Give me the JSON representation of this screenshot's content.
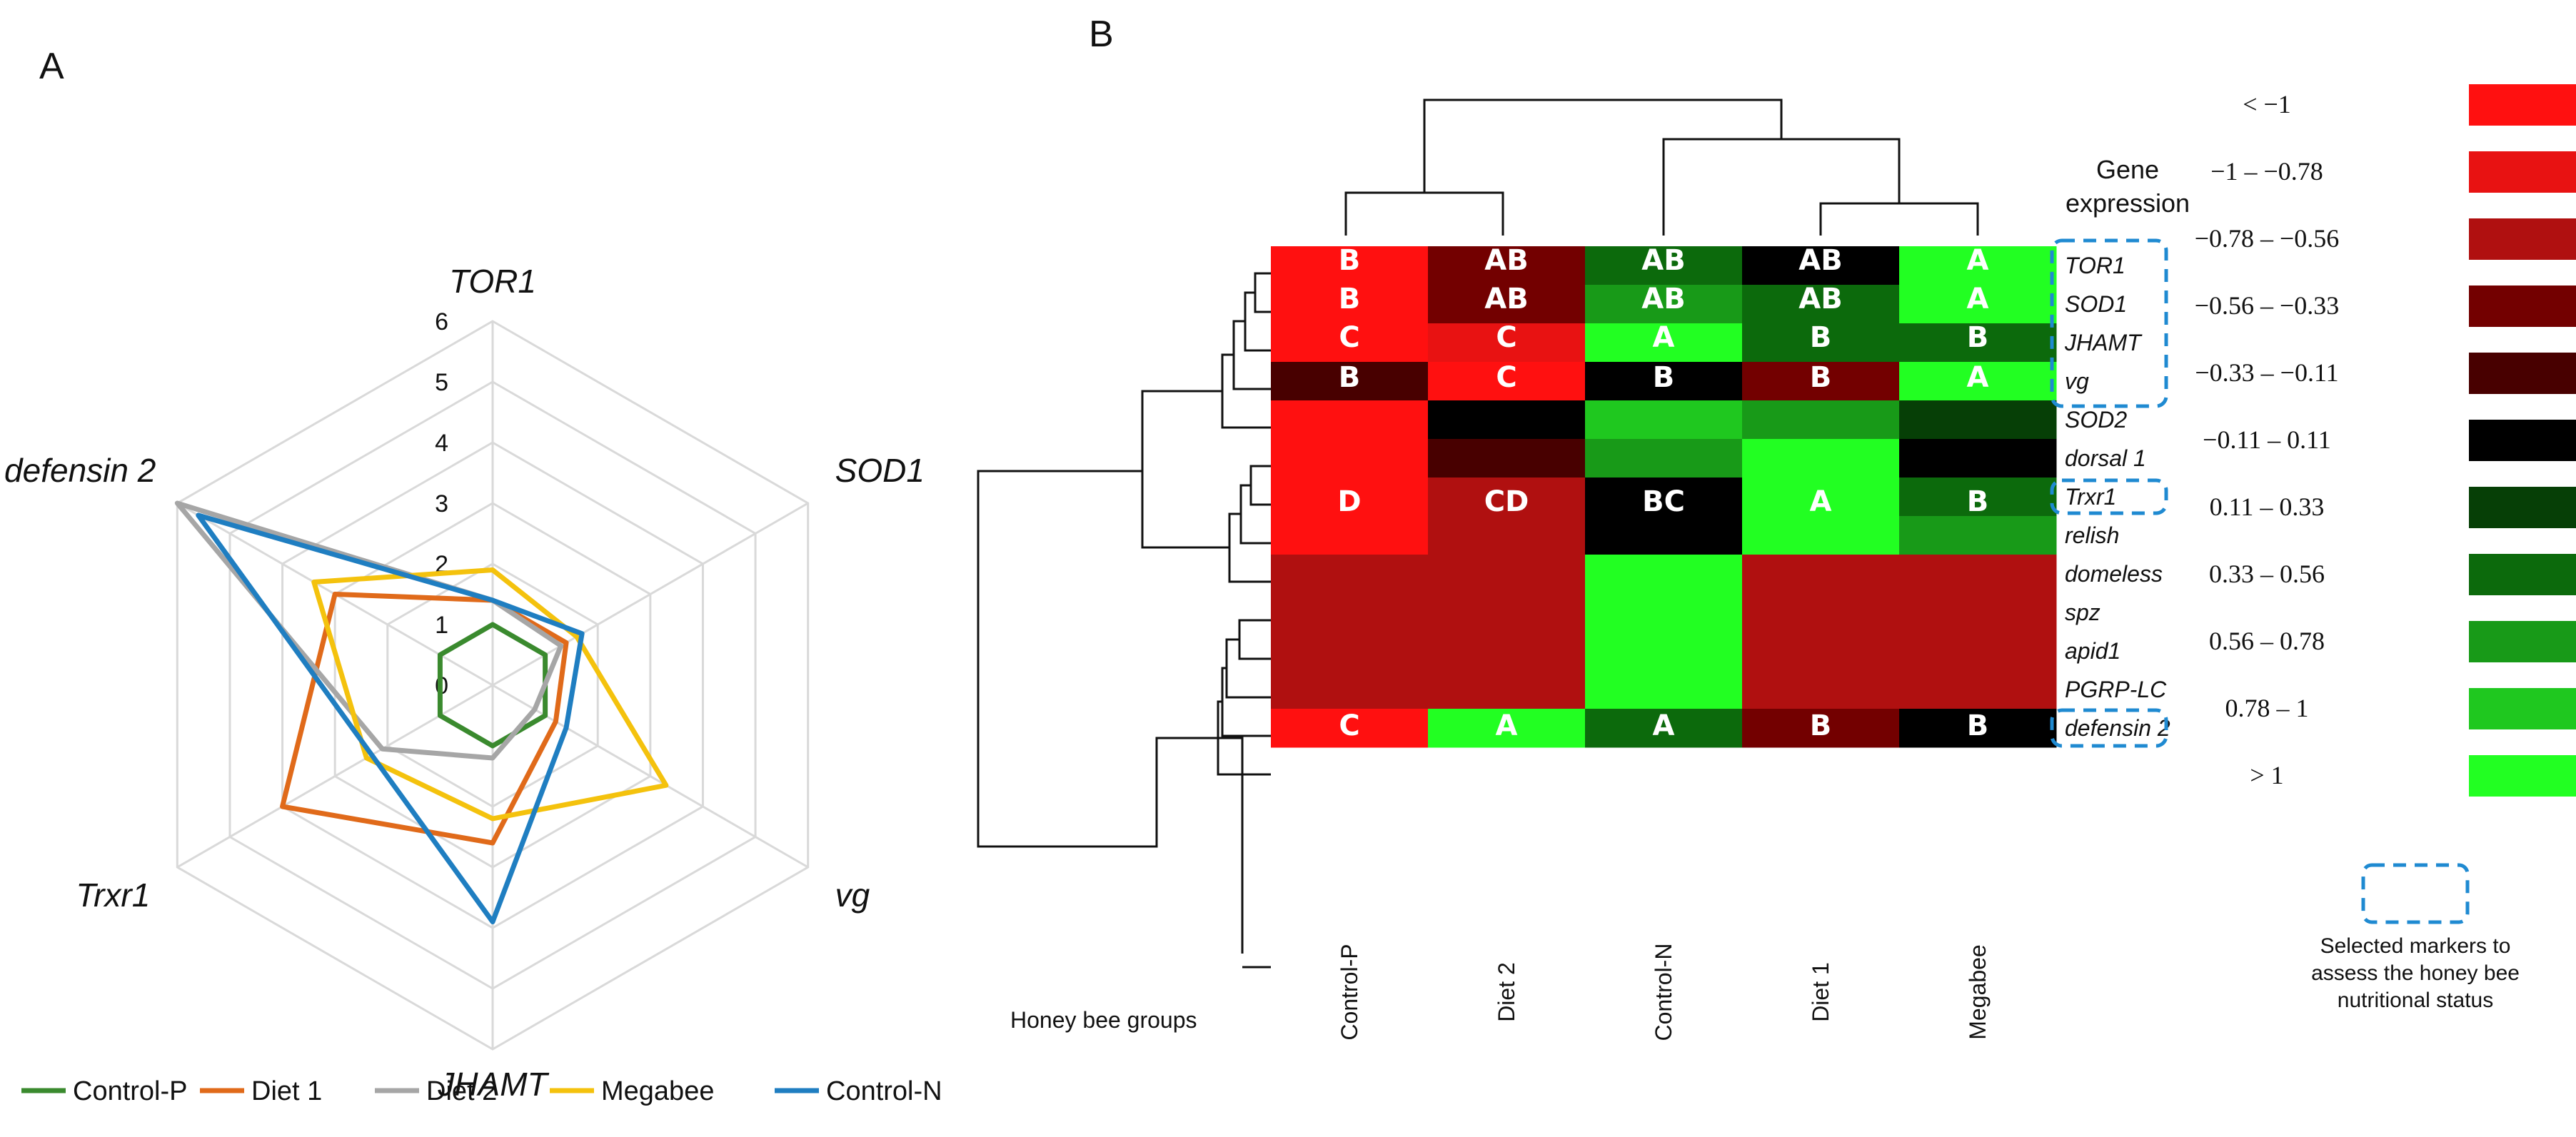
{
  "chart_data": [
    {
      "type": "radar",
      "panel": "A",
      "axes": [
        "TOR1",
        "SOD1",
        "vg",
        "JHAMT",
        "Trxr1",
        "defensin 2"
      ],
      "rlim": [
        0,
        6
      ],
      "ticks": [
        "0",
        "1",
        "2",
        "3",
        "4",
        "5",
        "6"
      ],
      "colors": {
        "Control-P": "#3a8a2e",
        "Diet 1": "#e06a1a",
        "Diet 2": "#a6a6a6",
        "Megabee": "#f4c20d",
        "Control-N": "#1f7ec1"
      },
      "series": [
        {
          "name": "Control-P",
          "values": [
            1.0,
            1.0,
            1.0,
            1.0,
            1.0,
            1.0
          ]
        },
        {
          "name": "Diet 1",
          "values": [
            1.4,
            1.4,
            1.2,
            2.6,
            4.0,
            3.0
          ]
        },
        {
          "name": "Diet 2",
          "values": [
            1.4,
            1.3,
            0.8,
            1.2,
            2.1,
            6.0
          ]
        },
        {
          "name": "Megabee",
          "values": [
            1.9,
            1.6,
            3.3,
            2.2,
            2.4,
            3.4
          ]
        },
        {
          "name": "Control-N",
          "values": [
            1.4,
            1.7,
            1.4,
            3.9,
            2.3,
            5.6
          ]
        }
      ]
    },
    {
      "type": "heatmap",
      "panel": "B",
      "columns": [
        "Control-P",
        "Diet 2",
        "Control-N",
        "Diet 1",
        "Megabee"
      ],
      "rows": [
        "TOR1",
        "SOD1",
        "JHAMT",
        "vg",
        "SOD2",
        "dorsal 1",
        "Trxr1",
        "relish",
        "domeless",
        "spz",
        "apid1",
        "PGRP-LC",
        "defensin 2"
      ],
      "selected_markers": [
        "TOR1",
        "SOD1",
        "JHAMT",
        "vg",
        "Trxr1",
        "defensin 2"
      ],
      "values": [
        [
          -1.2,
          -0.45,
          0.45,
          0.0,
          1.2
        ],
        [
          -1.2,
          -0.45,
          0.7,
          0.45,
          1.2
        ],
        [
          -1.2,
          -0.9,
          1.2,
          0.35,
          0.5
        ],
        [
          -0.25,
          -1.2,
          0.0,
          -0.45,
          1.2
        ],
        [
          -1.2,
          0.0,
          0.9,
          0.7,
          0.25
        ],
        [
          -1.2,
          -0.3,
          0.7,
          1.2,
          0.0
        ],
        [
          -1.2,
          -0.7,
          0.0,
          1.2,
          0.45
        ],
        [
          -1.2,
          -0.7,
          0.0,
          1.2,
          0.7
        ],
        [
          -0.6,
          -0.6,
          1.2,
          -0.6,
          -0.6
        ],
        [
          -0.6,
          -0.6,
          1.2,
          -0.6,
          -0.6
        ],
        [
          -0.6,
          -0.6,
          1.2,
          -0.6,
          -0.6
        ],
        [
          -0.6,
          -0.6,
          1.2,
          -0.6,
          -0.6
        ],
        [
          -1.2,
          1.2,
          0.45,
          -0.45,
          0.0
        ]
      ],
      "color_scale": [
        {
          "label": "< −1",
          "color": "#ff1010"
        },
        {
          "label": "−1 – −0.78",
          "color": "#e81212"
        },
        {
          "label": "−0.78 – −0.56",
          "color": "#b01010"
        },
        {
          "label": "−0.56 – −0.33",
          "color": "#730000"
        },
        {
          "label": "−0.33 – −0.11",
          "color": "#480000"
        },
        {
          "label": "−0.11 – 0.11",
          "color": "#000000"
        },
        {
          "label": "0.11 – 0.33",
          "color": "#063f06"
        },
        {
          "label": "0.33 – 0.56",
          "color": "#0c6a0c"
        },
        {
          "label": "0.56 – 0.78",
          "color": "#189a18"
        },
        {
          "label": "0.78 – 1",
          "color": "#1fc81f"
        },
        {
          "label": "> 1",
          "color": "#22ff22"
        }
      ],
      "title_scale": "Gene expression",
      "note": "Selected markers to assess the honey bee nutritional status",
      "xlabel": "Honey bee groups"
    }
  ],
  "labels": {
    "panel_a": "A",
    "panel_b": "B"
  }
}
